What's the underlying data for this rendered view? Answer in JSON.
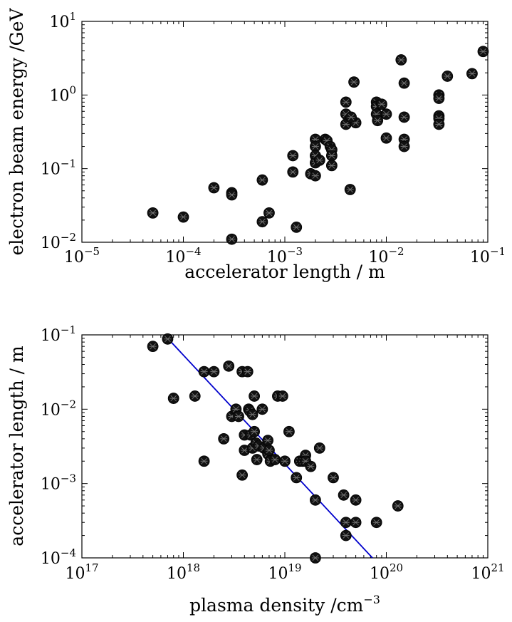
{
  "chart_data": [
    {
      "type": "scatter",
      "xscale": "log",
      "yscale": "log",
      "xlim": [
        1e-05,
        0.1
      ],
      "ylim": [
        0.01,
        10
      ],
      "xlabel": "accelerator length / m",
      "ylabel": "electron beam energy /GeV",
      "xticks": [
        {
          "value": 1e-05,
          "base": "10",
          "exp": "−5"
        },
        {
          "value": 0.0001,
          "base": "10",
          "exp": "−4"
        },
        {
          "value": 0.001,
          "base": "10",
          "exp": "−3"
        },
        {
          "value": 0.01,
          "base": "10",
          "exp": "−2"
        },
        {
          "value": 0.1,
          "base": "10",
          "exp": "−1"
        }
      ],
      "yticks": [
        {
          "value": 0.01,
          "base": "10",
          "exp": "−2"
        },
        {
          "value": 0.1,
          "base": "10",
          "exp": "−1"
        },
        {
          "value": 1,
          "base": "10",
          "exp": "0"
        },
        {
          "value": 10,
          "base": "10",
          "exp": "1"
        }
      ],
      "grid": false,
      "points": [
        [
          5e-05,
          0.025
        ],
        [
          0.0001,
          0.022
        ],
        [
          0.0002,
          0.055
        ],
        [
          0.0003,
          0.047
        ],
        [
          0.0003,
          0.044
        ],
        [
          0.0003,
          0.011
        ],
        [
          0.0006,
          0.07
        ],
        [
          0.0006,
          0.019
        ],
        [
          0.0007,
          0.025
        ],
        [
          0.0012,
          0.15
        ],
        [
          0.0012,
          0.09
        ],
        [
          0.0013,
          0.016
        ],
        [
          0.0018,
          0.085
        ],
        [
          0.002,
          0.25
        ],
        [
          0.002,
          0.2
        ],
        [
          0.002,
          0.15
        ],
        [
          0.002,
          0.12
        ],
        [
          0.002,
          0.08
        ],
        [
          0.0022,
          0.13
        ],
        [
          0.0025,
          0.25
        ],
        [
          0.0026,
          0.24
        ],
        [
          0.0028,
          0.2
        ],
        [
          0.0029,
          0.18
        ],
        [
          0.0029,
          0.15
        ],
        [
          0.0029,
          0.11
        ],
        [
          0.004,
          0.8
        ],
        [
          0.004,
          0.55
        ],
        [
          0.004,
          0.4
        ],
        [
          0.0044,
          0.052
        ],
        [
          0.0048,
          1.5
        ],
        [
          0.005,
          0.42
        ],
        [
          0.0045,
          0.5
        ],
        [
          0.008,
          0.8
        ],
        [
          0.008,
          0.7
        ],
        [
          0.008,
          0.55
        ],
        [
          0.0082,
          0.45
        ],
        [
          0.009,
          0.75
        ],
        [
          0.01,
          0.55
        ],
        [
          0.01,
          0.26
        ],
        [
          0.014,
          3.0
        ],
        [
          0.015,
          1.45
        ],
        [
          0.015,
          0.5
        ],
        [
          0.015,
          0.25
        ],
        [
          0.015,
          0.2
        ],
        [
          0.033,
          1.0
        ],
        [
          0.033,
          0.9
        ],
        [
          0.033,
          0.52
        ],
        [
          0.033,
          0.48
        ],
        [
          0.033,
          0.4
        ],
        [
          0.04,
          1.8
        ],
        [
          0.07,
          1.95
        ],
        [
          0.09,
          3.9
        ]
      ]
    },
    {
      "type": "scatter",
      "xscale": "log",
      "yscale": "log",
      "xlim": [
        1e+17,
        1e+21
      ],
      "ylim": [
        0.0001,
        0.1
      ],
      "xlabel": "plasma density /cm",
      "xlabel_exp": "−3",
      "ylabel": "accelerator length / m",
      "xticks": [
        {
          "value": 1e+17,
          "base": "10",
          "exp": "17"
        },
        {
          "value": 1e+18,
          "base": "10",
          "exp": "18"
        },
        {
          "value": 1e+19,
          "base": "10",
          "exp": "19"
        },
        {
          "value": 1e+20,
          "base": "10",
          "exp": "20"
        },
        {
          "value": 1e+21,
          "base": "10",
          "exp": "21"
        }
      ],
      "yticks": [
        {
          "value": 0.0001,
          "base": "10",
          "exp": "−4"
        },
        {
          "value": 0.001,
          "base": "10",
          "exp": "−3"
        },
        {
          "value": 0.01,
          "base": "10",
          "exp": "−2"
        },
        {
          "value": 0.1,
          "base": "10",
          "exp": "−1"
        }
      ],
      "grid": false,
      "fit_line": {
        "color": "#0000cc",
        "from": [
          7e+17,
          0.09
        ],
        "to": [
          7.3e+19,
          0.0001
        ]
      },
      "points": [
        [
          5e+17,
          0.07
        ],
        [
          7e+17,
          0.088
        ],
        [
          8e+17,
          0.014
        ],
        [
          1.3e+18,
          0.015
        ],
        [
          1.6e+18,
          0.032
        ],
        [
          1.6e+18,
          0.002
        ],
        [
          2e+18,
          0.032
        ],
        [
          2.5e+18,
          0.004
        ],
        [
          2.8e+18,
          0.038
        ],
        [
          3e+18,
          0.008
        ],
        [
          3.3e+18,
          0.01
        ],
        [
          3.5e+18,
          0.008
        ],
        [
          3.8e+18,
          0.032
        ],
        [
          3.8e+18,
          0.0013
        ],
        [
          4e+18,
          0.0045
        ],
        [
          4e+18,
          0.0028
        ],
        [
          4.3e+18,
          0.032
        ],
        [
          4.4e+18,
          0.01
        ],
        [
          4.5e+18,
          0.0095
        ],
        [
          4.6e+18,
          0.0045
        ],
        [
          4.8e+18,
          0.0085
        ],
        [
          4.8e+18,
          0.003
        ],
        [
          5e+18,
          0.015
        ],
        [
          5e+18,
          0.005
        ],
        [
          5.2e+18,
          0.0035
        ],
        [
          5.3e+18,
          0.0021
        ],
        [
          5.5e+18,
          0.0032
        ],
        [
          6e+18,
          0.01
        ],
        [
          6.2e+18,
          0.003
        ],
        [
          6.8e+18,
          0.0038
        ],
        [
          6.8e+18,
          0.0025
        ],
        [
          7e+18,
          0.0028
        ],
        [
          7.2e+18,
          0.002
        ],
        [
          8e+18,
          0.0021
        ],
        [
          8.5e+18,
          0.015
        ],
        [
          9.5e+18,
          0.015
        ],
        [
          1e+19,
          0.002
        ],
        [
          1.1e+19,
          0.005
        ],
        [
          1.3e+19,
          0.0012
        ],
        [
          1.4e+19,
          0.002
        ],
        [
          1.5e+19,
          0.002
        ],
        [
          1.6e+19,
          0.0024
        ],
        [
          1.6e+19,
          0.002
        ],
        [
          1.8e+19,
          0.0017
        ],
        [
          2e+19,
          0.0006
        ],
        [
          2e+19,
          0.0001
        ],
        [
          2.2e+19,
          0.003
        ],
        [
          3e+19,
          0.0012
        ],
        [
          3.8e+19,
          0.0007
        ],
        [
          4e+19,
          0.0003
        ],
        [
          4e+19,
          0.0002
        ],
        [
          5e+19,
          0.0006
        ],
        [
          5e+19,
          0.0003
        ],
        [
          8e+19,
          0.0003
        ],
        [
          1.3e+20,
          0.0005
        ]
      ]
    }
  ]
}
